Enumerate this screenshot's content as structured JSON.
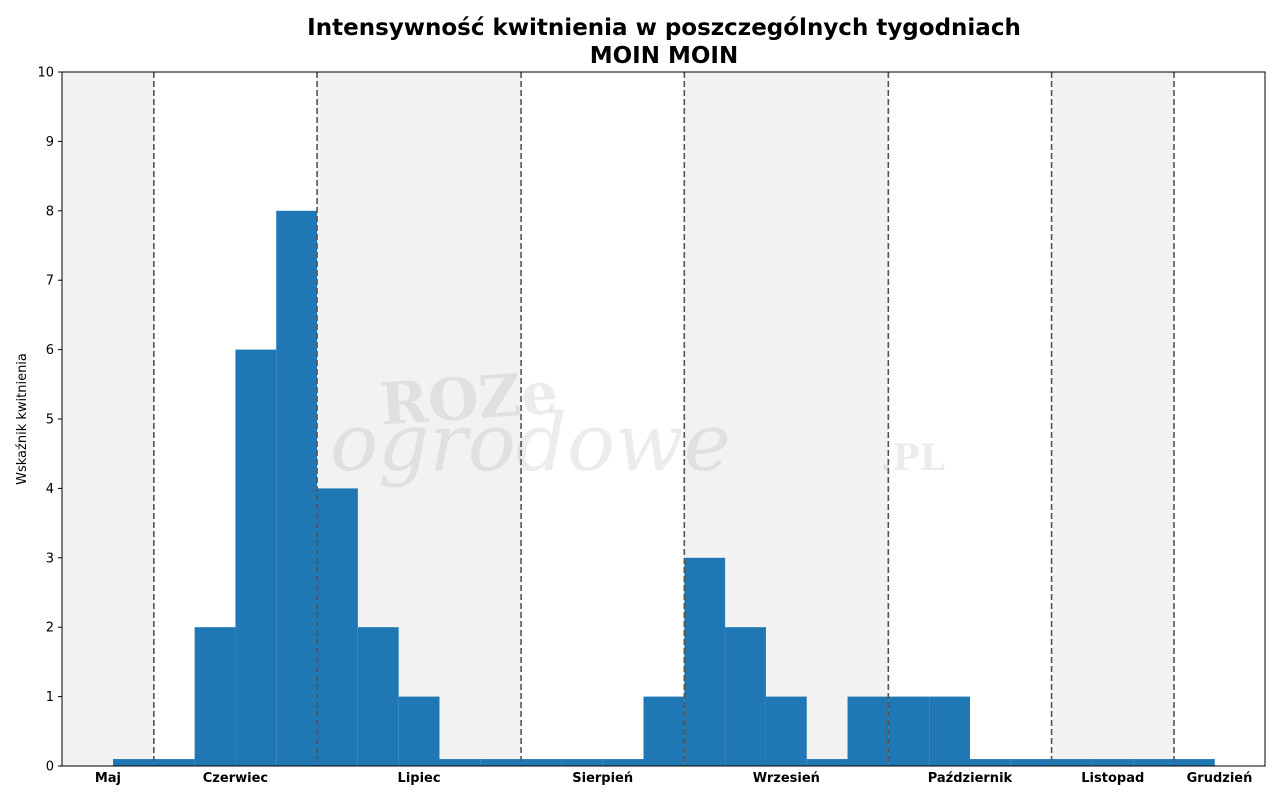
{
  "chart_data": {
    "type": "bar",
    "title": "Intensywność kwitnienia w poszczególnych tygodniach",
    "subtitle": "MOIN MOIN",
    "xlabel": "",
    "ylabel": "Wskaźnik kwitnienia",
    "ylim": [
      0,
      10
    ],
    "yticks": [
      "0",
      "1",
      "2",
      "3",
      "4",
      "5",
      "6",
      "7",
      "8",
      "9",
      "10"
    ],
    "xlim": [
      -0.75,
      28.73
    ],
    "x": [
      1,
      2,
      3,
      4,
      5,
      6,
      7,
      8,
      9,
      10,
      11,
      12,
      13,
      14,
      15,
      16,
      17,
      18,
      19,
      20,
      21,
      22,
      23,
      24,
      25,
      26,
      27
    ],
    "values": [
      0.1,
      0.1,
      2,
      6,
      8,
      4,
      2,
      1,
      0.1,
      0.1,
      0.1,
      0.1,
      0.1,
      1,
      3,
      2,
      1,
      0.1,
      1,
      1,
      1,
      0.1,
      0.1,
      0.1,
      0.1,
      0.1,
      0.1
    ],
    "bar_color": "#1f77b4",
    "grid": false,
    "months": [
      {
        "label": "Maj",
        "start": -0.75,
        "end": 1.5,
        "shaded": true
      },
      {
        "label": "Czerwiec",
        "start": 1.5,
        "end": 5.5,
        "shaded": false
      },
      {
        "label": "Lipiec",
        "start": 5.5,
        "end": 10.5,
        "shaded": true
      },
      {
        "label": "Sierpień",
        "start": 10.5,
        "end": 14.5,
        "shaded": false
      },
      {
        "label": "Wrzesień",
        "start": 14.5,
        "end": 19.5,
        "shaded": true
      },
      {
        "label": "Październik",
        "start": 19.5,
        "end": 23.5,
        "shaded": false
      },
      {
        "label": "Listopad",
        "start": 23.5,
        "end": 26.5,
        "shaded": true
      },
      {
        "label": "Grudzień",
        "start": 26.5,
        "end": 28.73,
        "shaded": false
      }
    ],
    "shade_color": "#f2f2f2",
    "divider_color": "#555555"
  },
  "watermark": {
    "line1": "ROZe",
    "line2": "ogrodowe",
    "suffix": ".PL"
  }
}
